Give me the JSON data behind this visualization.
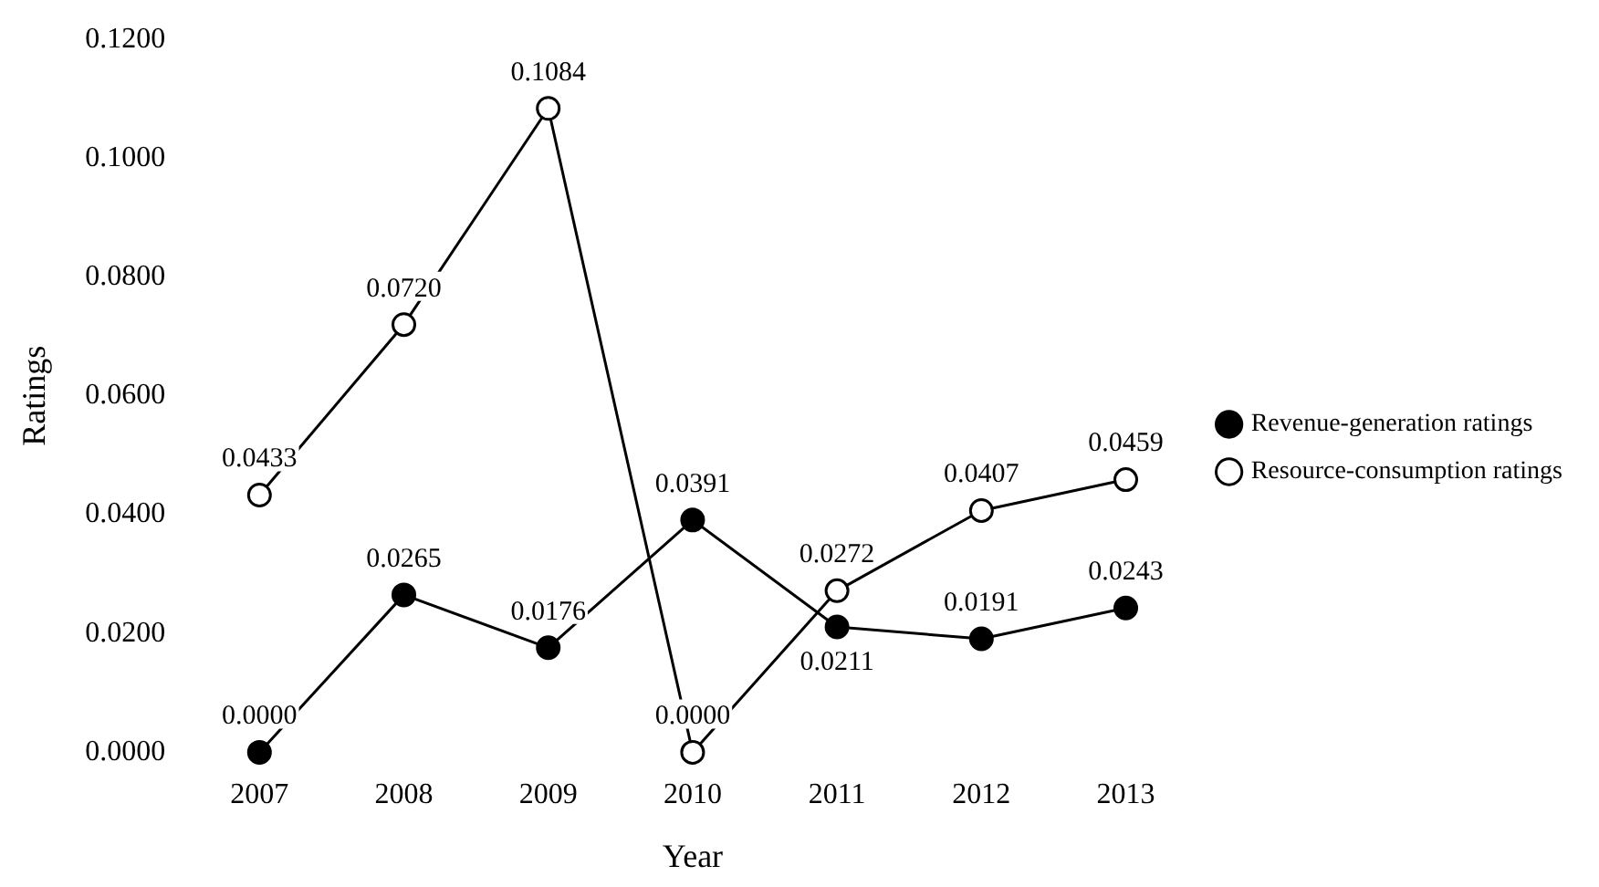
{
  "chart_data": {
    "type": "line",
    "xlabel": "Year",
    "ylabel": "Ratings",
    "categories": [
      "2007",
      "2008",
      "2009",
      "2010",
      "2011",
      "2012",
      "2013"
    ],
    "series": [
      {
        "name": "Revenue-generation ratings",
        "color": "#000000",
        "values": [
          0.0,
          0.0265,
          0.0176,
          0.0391,
          0.0211,
          0.0191,
          0.0243
        ],
        "value_labels": [
          "0.0000",
          "0.0265",
          "0.0176",
          "0.0391",
          "0.0211",
          "0.0191",
          "0.0243"
        ]
      },
      {
        "name": "Resource-consumption ratings",
        "color": "#000000",
        "values": [
          0.0433,
          0.072,
          0.1084,
          0.0,
          0.0272,
          0.0407,
          0.0459
        ],
        "value_labels": [
          "0.0433",
          "0.0720",
          "0.1084",
          "0.0000",
          "0.0272",
          "0.0407",
          "0.0459"
        ]
      }
    ],
    "ylim": [
      0,
      0.12
    ],
    "yticks": [
      {
        "value": 0,
        "label": "0.0000"
      },
      {
        "value": 0.02,
        "label": "0.0200"
      },
      {
        "value": 0.04,
        "label": "0.0400"
      },
      {
        "value": 0.06,
        "label": "0.0600"
      },
      {
        "value": 0.08,
        "label": "0.0800"
      },
      {
        "value": 0.1,
        "label": "0.1000"
      },
      {
        "value": 0.12,
        "label": "0.1200"
      }
    ],
    "grid": false,
    "legend": "right",
    "marker": "circle",
    "line_style": "solid"
  }
}
